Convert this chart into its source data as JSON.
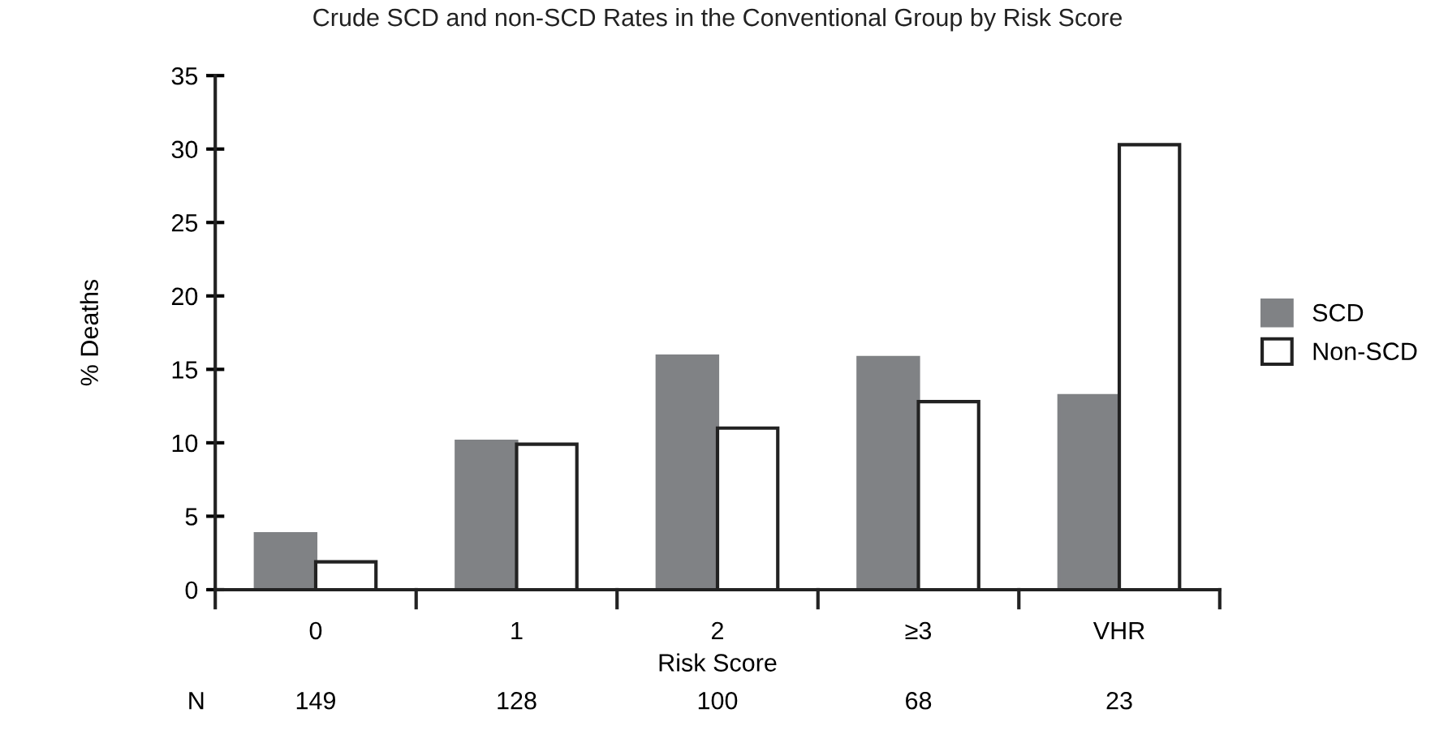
{
  "chart_data": {
    "type": "bar",
    "title": "Crude SCD and non-SCD Rates in the Conventional Group by Risk Score",
    "xlabel": "Risk Score",
    "ylabel": "% Deaths",
    "categories": [
      "0",
      "1",
      "2",
      "≥3",
      "VHR"
    ],
    "series": [
      {
        "name": "SCD",
        "color": "#808285",
        "values": [
          3.8,
          10.1,
          15.9,
          15.8,
          13.2
        ]
      },
      {
        "name": "Non-SCD",
        "color": "#ffffff",
        "values": [
          1.9,
          9.9,
          11.0,
          12.8,
          30.3
        ]
      }
    ],
    "ylim": [
      0,
      35
    ],
    "yticks": [
      0,
      5,
      10,
      15,
      20,
      25,
      30,
      35
    ],
    "grid": false,
    "legend": "right",
    "annotations": [
      "N",
      "149",
      "128",
      "100",
      "68",
      "23"
    ]
  }
}
